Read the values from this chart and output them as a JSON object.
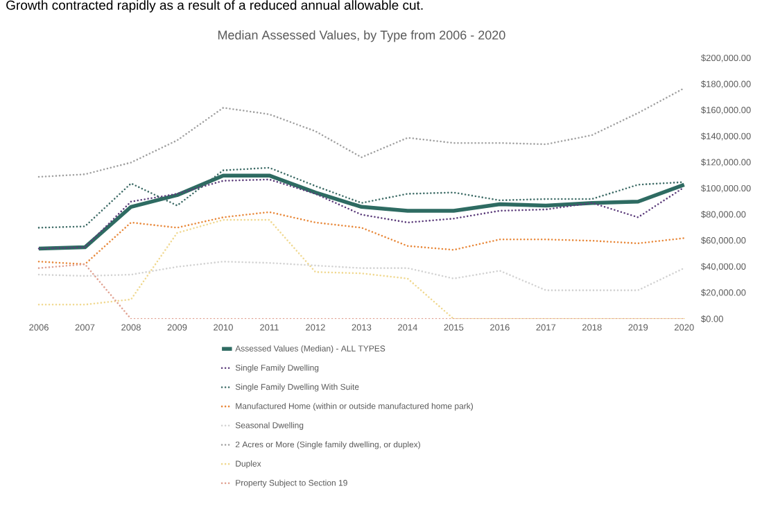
{
  "chart_data": {
    "type": "line",
    "title": "Median Assessed Values, by Type from 2006 - 2020",
    "annotations": [
      "Growth contracted rapidly as a result of a reduced annual allowable cut."
    ],
    "categories": [
      "2006",
      "2007",
      "2008",
      "2009",
      "2010",
      "2011",
      "2012",
      "2013",
      "2014",
      "2015",
      "2016",
      "2017",
      "2018",
      "2019",
      "2020"
    ],
    "series": [
      {
        "name": "Assessed Values (Median) - ALL TYPES",
        "color": "#2e6b62",
        "line_style": "solid",
        "values": [
          54000,
          55000,
          86000,
          95000,
          110000,
          110000,
          97000,
          86000,
          83000,
          83000,
          88000,
          87000,
          89000,
          90000,
          103000
        ]
      },
      {
        "name": "Single Family Dwelling",
        "color": "#5b3b7a",
        "line_style": "dotted",
        "values": [
          54000,
          55000,
          90000,
          96000,
          106000,
          107000,
          96000,
          80000,
          74000,
          77000,
          83000,
          84000,
          89000,
          78000,
          101000
        ]
      },
      {
        "name": "Single Family Dwelling With Suite",
        "color": "#3d6b66",
        "line_style": "dotted",
        "values": [
          70000,
          71000,
          104000,
          87000,
          114000,
          116000,
          102000,
          89000,
          96000,
          97000,
          91000,
          92000,
          92000,
          103000,
          105000
        ]
      },
      {
        "name": "Manufactured Home (within or outside manufactured home park)",
        "color": "#e8883a",
        "line_style": "dotted",
        "values": [
          44000,
          42000,
          74000,
          70000,
          78000,
          82000,
          74000,
          70000,
          56000,
          53000,
          61000,
          61000,
          60000,
          58000,
          62000
        ]
      },
      {
        "name": "Seasonal Dwelling",
        "color": "#d2d2d2",
        "line_style": "dotted",
        "values": [
          34000,
          33000,
          34000,
          40000,
          44000,
          43000,
          41000,
          39000,
          39000,
          31000,
          37000,
          22000,
          22000,
          22000,
          39000
        ]
      },
      {
        "name": "2 Acres or More (Single family dwelling, or duplex)",
        "color": "#a0a0a0",
        "line_style": "dotted",
        "values": [
          109000,
          111000,
          120000,
          137000,
          162000,
          157000,
          144000,
          124000,
          139000,
          135000,
          135000,
          134000,
          141000,
          158000,
          177000
        ]
      },
      {
        "name": "Duplex",
        "color": "#f0d890",
        "line_style": "dotted",
        "values": [
          11000,
          11000,
          15000,
          66000,
          76000,
          76000,
          36000,
          35000,
          31000,
          0,
          0,
          0,
          0,
          0,
          0
        ]
      },
      {
        "name": "Property Subject to Section 19",
        "color": "#e0a090",
        "line_style": "dotted",
        "values": [
          39000,
          42000,
          0,
          0,
          0,
          0,
          0,
          0,
          0,
          0,
          0,
          0,
          0,
          0,
          0
        ]
      }
    ],
    "ylim": [
      0,
      200000
    ],
    "yticks": [
      {
        "value": 0,
        "label": "$0.00"
      },
      {
        "value": 20000,
        "label": "$20,000.00"
      },
      {
        "value": 40000,
        "label": "$40,000.00"
      },
      {
        "value": 60000,
        "label": "$60,000.00"
      },
      {
        "value": 80000,
        "label": "$80,000.00"
      },
      {
        "value": 100000,
        "label": "$100,000.00"
      },
      {
        "value": 120000,
        "label": "$120,000.00"
      },
      {
        "value": 140000,
        "label": "$140,000.00"
      },
      {
        "value": 160000,
        "label": "$160,000.00"
      },
      {
        "value": 180000,
        "label": "$180,000.00"
      },
      {
        "value": 200000,
        "label": "$200,000.00"
      }
    ],
    "legend": "bottom",
    "grid": false
  }
}
